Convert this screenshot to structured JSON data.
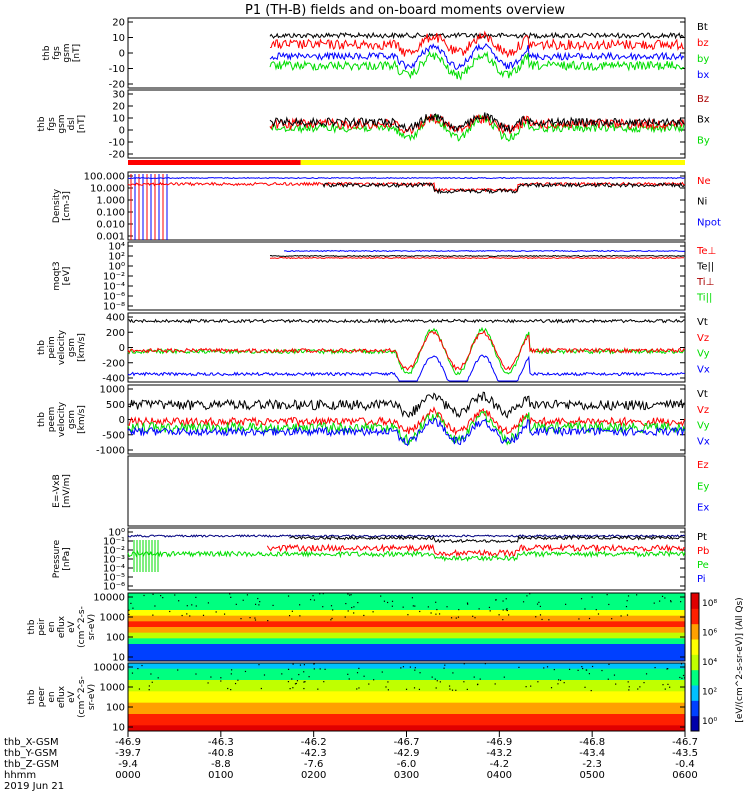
{
  "title": "P1 (TH-B) fields and on-board moments overview",
  "colors": {
    "black": "#000000",
    "red": "#ff0000",
    "green": "#00dd00",
    "blue": "#0000ff",
    "yellow": "#ffff00",
    "navy": "#000080",
    "darkred": "#aa0000"
  },
  "panels": [
    {
      "id": "fgs",
      "ylabel": [
        "thb",
        "fgs",
        "gsm",
        "[nT]"
      ],
      "ticks": [
        "20",
        "10",
        "0",
        "-10",
        "-20"
      ],
      "ylim": [
        -20,
        20
      ],
      "legend": [
        {
          "text": "Bt",
          "color": "#000000"
        },
        {
          "text": "bz",
          "color": "#ff0000"
        },
        {
          "text": "by",
          "color": "#00dd00"
        },
        {
          "text": "bx",
          "color": "#0000ff"
        }
      ]
    },
    {
      "id": "fgs_dsl",
      "ylabel": [
        "thb",
        "fgs",
        "gsm",
        "dsl",
        "[nT]"
      ],
      "ticks": [
        "30",
        "20",
        "10",
        "0",
        "-10",
        "-20"
      ],
      "ylim": [
        -25,
        30
      ],
      "legend": [
        {
          "text": "Bz",
          "color": "#aa0000"
        },
        {
          "text": "Bx",
          "color": "#000000"
        },
        {
          "text": "By",
          "color": "#00dd00"
        }
      ]
    },
    {
      "id": "density",
      "ylabel": [
        "Density",
        "[cm-3]"
      ],
      "ticks": [
        "100.000",
        "10.000",
        "1.000",
        "0.100",
        "0.010",
        "0.001"
      ],
      "ylim": [
        0.001,
        100
      ],
      "log": true,
      "legend": [
        {
          "text": "Ne",
          "color": "#ff0000"
        },
        {
          "text": "Ni",
          "color": "#000000"
        },
        {
          "text": "Npot",
          "color": "#0000ff"
        }
      ]
    },
    {
      "id": "temp",
      "ylabel": [
        "moqt3",
        "[eV]"
      ],
      "ticks": [
        "10⁴",
        "10²",
        "10⁰",
        "10⁻²",
        "10⁻⁴",
        "10⁻⁶",
        "10⁻⁸"
      ],
      "log": true,
      "legend": [
        {
          "text": "Te⊥",
          "color": "#ff0000"
        },
        {
          "text": "Te||",
          "color": "#000000"
        },
        {
          "text": "Ti⊥",
          "color": "#aa0000"
        },
        {
          "text": "Ti||",
          "color": "#00dd00"
        }
      ]
    },
    {
      "id": "peim",
      "ylabel": [
        "thb",
        "peim",
        "velocity",
        "gsm",
        "[km/s]"
      ],
      "ticks": [
        "400",
        "200",
        "0",
        "-200",
        "-400"
      ],
      "ylim": [
        -400,
        400
      ],
      "legend": [
        {
          "text": "Vt",
          "color": "#000000"
        },
        {
          "text": "Vz",
          "color": "#ff0000"
        },
        {
          "text": "Vy",
          "color": "#00dd00"
        },
        {
          "text": "Vx",
          "color": "#0000ff"
        }
      ]
    },
    {
      "id": "peem",
      "ylabel": [
        "thb",
        "peem",
        "velocity",
        "gsm",
        "[km/s]"
      ],
      "ticks": [
        "1000",
        "500",
        "0",
        "-500",
        "-1000"
      ],
      "ylim": [
        -1000,
        1000
      ],
      "legend": [
        {
          "text": "Vt",
          "color": "#000000"
        },
        {
          "text": "Vz",
          "color": "#ff0000"
        },
        {
          "text": "Vy",
          "color": "#00dd00"
        },
        {
          "text": "Vx",
          "color": "#0000ff"
        }
      ]
    },
    {
      "id": "efield",
      "ylabel": [
        "E=-VxB",
        "[mV/m]"
      ],
      "ticks": [],
      "legend": [
        {
          "text": "Ez",
          "color": "#ff0000"
        },
        {
          "text": "Ey",
          "color": "#00dd00"
        },
        {
          "text": "Ex",
          "color": "#0000ff"
        }
      ]
    },
    {
      "id": "pressure",
      "ylabel": [
        "Pressure",
        "[nPa]"
      ],
      "ticks": [
        "10⁰",
        "10⁻¹",
        "10⁻²",
        "10⁻³",
        "10⁻⁴",
        "10⁻⁵",
        "10⁻⁶"
      ],
      "log": true,
      "legend": [
        {
          "text": "Pt",
          "color": "#000000"
        },
        {
          "text": "Pb",
          "color": "#ff0000"
        },
        {
          "text": "Pe",
          "color": "#00dd00"
        },
        {
          "text": "Pi",
          "color": "#0000ff"
        }
      ]
    }
  ],
  "spectrograms": [
    {
      "id": "peir",
      "ylabel": [
        "thb",
        "peir",
        "en",
        "eflux",
        "eV",
        "(cm^2-s-",
        "sr-eV)"
      ],
      "ticks": [
        "10000",
        "1000",
        "100",
        "10"
      ]
    },
    {
      "id": "peer",
      "ylabel": [
        "thb",
        "peer",
        "en",
        "eflux",
        "eV",
        "(cm^2-s-",
        "sr-eV)"
      ],
      "ticks": [
        "10000",
        "1000",
        "100",
        "10"
      ]
    }
  ],
  "colorbar": {
    "ticks": [
      "10⁸",
      "10⁶",
      "10⁴",
      "10²",
      "10⁰"
    ],
    "label": "[eV/(cm^2-s-sr-eV)] (All Qs)"
  },
  "xaxis": {
    "rows": [
      {
        "label": "thb_X-GSM",
        "values": [
          "-46.9",
          "-46.3",
          "-46.2",
          "-46.7",
          "-46.9",
          "-46.8",
          "-46.7"
        ]
      },
      {
        "label": "thb_Y-GSM",
        "values": [
          "-39.7",
          "-40.8",
          "-42.3",
          "-42.9",
          "-43.2",
          "-43.4",
          "-43.5"
        ]
      },
      {
        "label": "thb_Z-GSM",
        "values": [
          "-9.4",
          "-8.8",
          "-7.6",
          "-6.0",
          "-4.2",
          "-2.3",
          "-0.4"
        ]
      },
      {
        "label": "hhmm",
        "values": [
          "0000",
          "0100",
          "0200",
          "0300",
          "0400",
          "0500",
          "0600"
        ]
      }
    ],
    "date": "2019 Jun 21"
  },
  "chart_data": {
    "type": "line",
    "title": "P1 (TH-B) fields and on-board moments overview",
    "x": [
      "0000",
      "0100",
      "0200",
      "0300",
      "0400",
      "0500",
      "0600"
    ],
    "xlabel": "hhmm",
    "series_panels": [
      {
        "panel": "fgs (nT)",
        "series": [
          {
            "name": "Bt",
            "values": [
              null,
              null,
              10,
              8,
              8,
              9,
              14
            ]
          },
          {
            "name": "bz",
            "values": [
              null,
              null,
              4,
              2,
              0,
              3,
              8
            ]
          },
          {
            "name": "by",
            "values": [
              null,
              null,
              -6,
              -4,
              -2,
              -6,
              -8
            ]
          },
          {
            "name": "bx",
            "values": [
              null,
              null,
              0,
              -4,
              -3,
              -1,
              0
            ]
          }
        ]
      },
      {
        "panel": "peim velocity (km/s)",
        "series": [
          {
            "name": "Vt",
            "values": [
              320,
              320,
              330,
              340,
              340,
              330,
              350
            ]
          },
          {
            "name": "Vz",
            "values": [
              -60,
              -60,
              -40,
              0,
              0,
              -40,
              -40
            ]
          },
          {
            "name": "Vy",
            "values": [
              -60,
              -60,
              -50,
              100,
              0,
              -50,
              -50
            ]
          },
          {
            "name": "Vx",
            "values": [
              -320,
              -330,
              -320,
              -300,
              -310,
              -330,
              -340
            ]
          }
        ]
      },
      {
        "panel": "peem velocity (km/s)",
        "series": [
          {
            "name": "Vt",
            "values": [
              300,
              320,
              350,
              450,
              600,
              300,
              300
            ]
          },
          {
            "name": "Vz",
            "values": [
              -50,
              -50,
              -50,
              0,
              -100,
              -50,
              -50
            ]
          },
          {
            "name": "Vy",
            "values": [
              -100,
              -120,
              -150,
              -200,
              -300,
              -150,
              -150
            ]
          },
          {
            "name": "Vx",
            "values": [
              -300,
              -300,
              -320,
              -350,
              -450,
              -300,
              -300
            ]
          }
        ]
      }
    ]
  }
}
